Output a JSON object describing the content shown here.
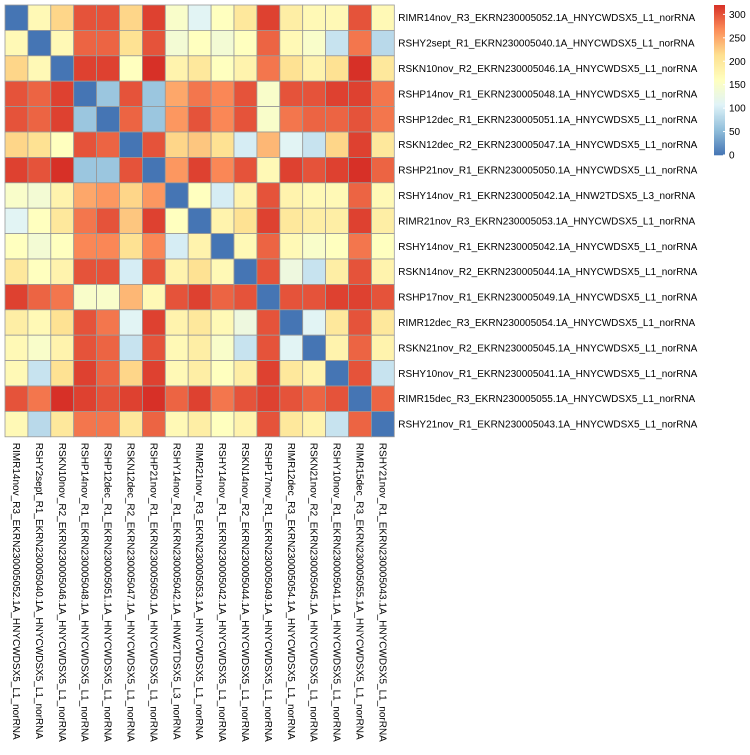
{
  "chart_data": {
    "type": "heatmap",
    "labels": [
      "RIMR14nov_R3_EKRN230005052.1A_HNYCWDSX5_L1_norRNA",
      "RSHY2sept_R1_EKRN230005040.1A_HNYCWDSX5_L1_norRNA",
      "RSKN10nov_R2_EKRN230005046.1A_HNYCWDSX5_L1_norRNA",
      "RSHP14nov_R1_EKRN230005048.1A_HNYCWDSX5_L1_norRNA",
      "RSHP12dec_R1_EKRN230005051.1A_HNYCWDSX5_L1_norRNA",
      "RSKN12dec_R2_EKRN230005047.1A_HNYCWDSX5_L1_norRNA",
      "RSHP21nov_R1_EKRN230005050.1A_HNYCWDSX5_L1_norRNA",
      "RSHY14nov_R1_EKRN230005042.1A_HNW2TDSX5_L3_norRNA",
      "RIMR21nov_R3_EKRN230005053.1A_HNYCWDSX5_L1_norRNA",
      "RSHY14nov_R1_EKRN230005042.1A_HNYCWDSX5_L1_norRNA",
      "RSKN14nov_R2_EKRN230005044.1A_HNYCWDSX5_L1_norRNA",
      "RSHP17nov_R1_EKRN230005049.1A_HNYCWDSX5_L1_norRNA",
      "RIMR12dec_R3_EKRN230005054.1A_HNYCWDSX5_L1_norRNA",
      "RSKN21nov_R2_EKRN230005045.1A_HNYCWDSX5_L1_norRNA",
      "RSHY10nov_R1_EKRN230005041.1A_HNYCWDSX5_L1_norRNA",
      "RIMR15dec_R3_EKRN230005055.1A_HNYCWDSX5_L1_norRNA",
      "RSHY21nov_R1_EKRN230005043.1A_HNYCWDSX5_L1_norRNA"
    ],
    "values": [
      [
        0,
        170,
        220,
        300,
        300,
        220,
        310,
        150,
        110,
        160,
        200,
        310,
        190,
        170,
        170,
        300,
        170
      ],
      [
        170,
        0,
        170,
        290,
        290,
        210,
        300,
        140,
        160,
        140,
        160,
        290,
        170,
        150,
        90,
        280,
        80
      ],
      [
        220,
        170,
        0,
        310,
        310,
        160,
        320,
        180,
        200,
        160,
        180,
        280,
        210,
        180,
        210,
        320,
        200
      ],
      [
        300,
        290,
        310,
        0,
        60,
        300,
        60,
        250,
        280,
        270,
        300,
        150,
        300,
        300,
        310,
        310,
        280
      ],
      [
        300,
        290,
        310,
        60,
        0,
        290,
        60,
        260,
        300,
        270,
        300,
        150,
        280,
        290,
        290,
        300,
        280
      ],
      [
        220,
        210,
        160,
        300,
        290,
        0,
        300,
        220,
        230,
        210,
        100,
        240,
        110,
        90,
        220,
        310,
        200
      ],
      [
        310,
        300,
        320,
        60,
        60,
        300,
        0,
        260,
        310,
        270,
        300,
        170,
        310,
        300,
        310,
        320,
        290
      ],
      [
        150,
        140,
        180,
        250,
        260,
        220,
        260,
        0,
        160,
        100,
        180,
        300,
        180,
        170,
        170,
        290,
        170
      ],
      [
        110,
        160,
        200,
        280,
        300,
        230,
        310,
        160,
        0,
        180,
        210,
        310,
        200,
        190,
        190,
        310,
        190
      ],
      [
        160,
        140,
        160,
        270,
        270,
        210,
        270,
        100,
        180,
        0,
        170,
        290,
        170,
        150,
        160,
        280,
        160
      ],
      [
        200,
        160,
        180,
        300,
        300,
        100,
        300,
        180,
        210,
        170,
        0,
        300,
        130,
        90,
        190,
        300,
        180
      ],
      [
        310,
        290,
        280,
        150,
        150,
        240,
        170,
        300,
        310,
        290,
        300,
        0,
        300,
        300,
        310,
        310,
        300
      ],
      [
        190,
        170,
        210,
        300,
        280,
        110,
        310,
        180,
        200,
        170,
        130,
        300,
        0,
        110,
        200,
        300,
        200
      ],
      [
        170,
        150,
        180,
        300,
        290,
        90,
        300,
        170,
        190,
        150,
        90,
        300,
        110,
        0,
        180,
        290,
        180
      ],
      [
        170,
        90,
        210,
        310,
        290,
        220,
        310,
        170,
        190,
        160,
        190,
        310,
        200,
        180,
        0,
        300,
        90
      ],
      [
        300,
        280,
        320,
        310,
        300,
        310,
        320,
        290,
        310,
        280,
        300,
        310,
        300,
        290,
        300,
        0,
        290
      ],
      [
        170,
        80,
        200,
        280,
        280,
        200,
        290,
        170,
        190,
        160,
        180,
        300,
        200,
        180,
        90,
        290,
        0
      ]
    ],
    "color_scale": {
      "min": 0,
      "max": 320,
      "colors": [
        "#4575B4",
        "#91BFDB",
        "#E0F3F8",
        "#FFFFBF",
        "#FEE090",
        "#FC8D59",
        "#D73027"
      ],
      "ticks": [
        0,
        50,
        100,
        150,
        200,
        250,
        300
      ]
    },
    "legend_position": "top-right",
    "grid_color": "#999999"
  }
}
